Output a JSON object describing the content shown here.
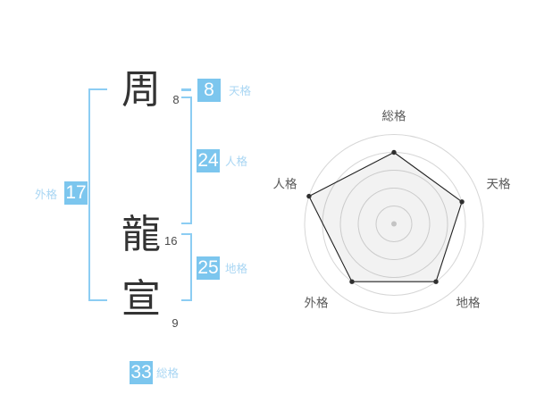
{
  "colors": {
    "background": "#ffffff",
    "box_blue": "#7cc6ee",
    "label_blue": "#a9d6f3",
    "bracket_blue": "#8ccdf3",
    "kanji_ink": "#333333",
    "stroke_number": "#4a4a4a",
    "radar_grid": "#d6d6d6",
    "radar_line": "#222222",
    "radar_dot": "#2f2f2f",
    "radar_center_dot": "#c4c4c4",
    "radar_fill": "rgba(0,0,0,0.05)",
    "radar_label": "#5a5a5a"
  },
  "name_diagram": {
    "characters": [
      {
        "char": "周",
        "strokes": "8"
      },
      {
        "char": "龍",
        "strokes": "16"
      },
      {
        "char": "宣",
        "strokes": "9"
      }
    ],
    "kaku": {
      "tenkaku": {
        "label": "天格",
        "value": "8"
      },
      "jinkaku": {
        "label": "人格",
        "value": "24"
      },
      "chikaku": {
        "label": "地格",
        "value": "25"
      },
      "gaikaku": {
        "label": "外格",
        "value": "17"
      },
      "soukaku": {
        "label": "総格",
        "value": "33"
      }
    }
  },
  "chart_data": {
    "type": "radar",
    "title": "",
    "categories": [
      "総格",
      "天格",
      "地格",
      "外格",
      "人格"
    ],
    "values": [
      80,
      80,
      80,
      80,
      100
    ],
    "axis_range": [
      0,
      100
    ],
    "rings": [
      20,
      40,
      60,
      80,
      100
    ],
    "angles_deg": [
      90,
      18,
      -54,
      -126,
      162
    ],
    "grid": "concentric-circles",
    "legend": "none"
  }
}
